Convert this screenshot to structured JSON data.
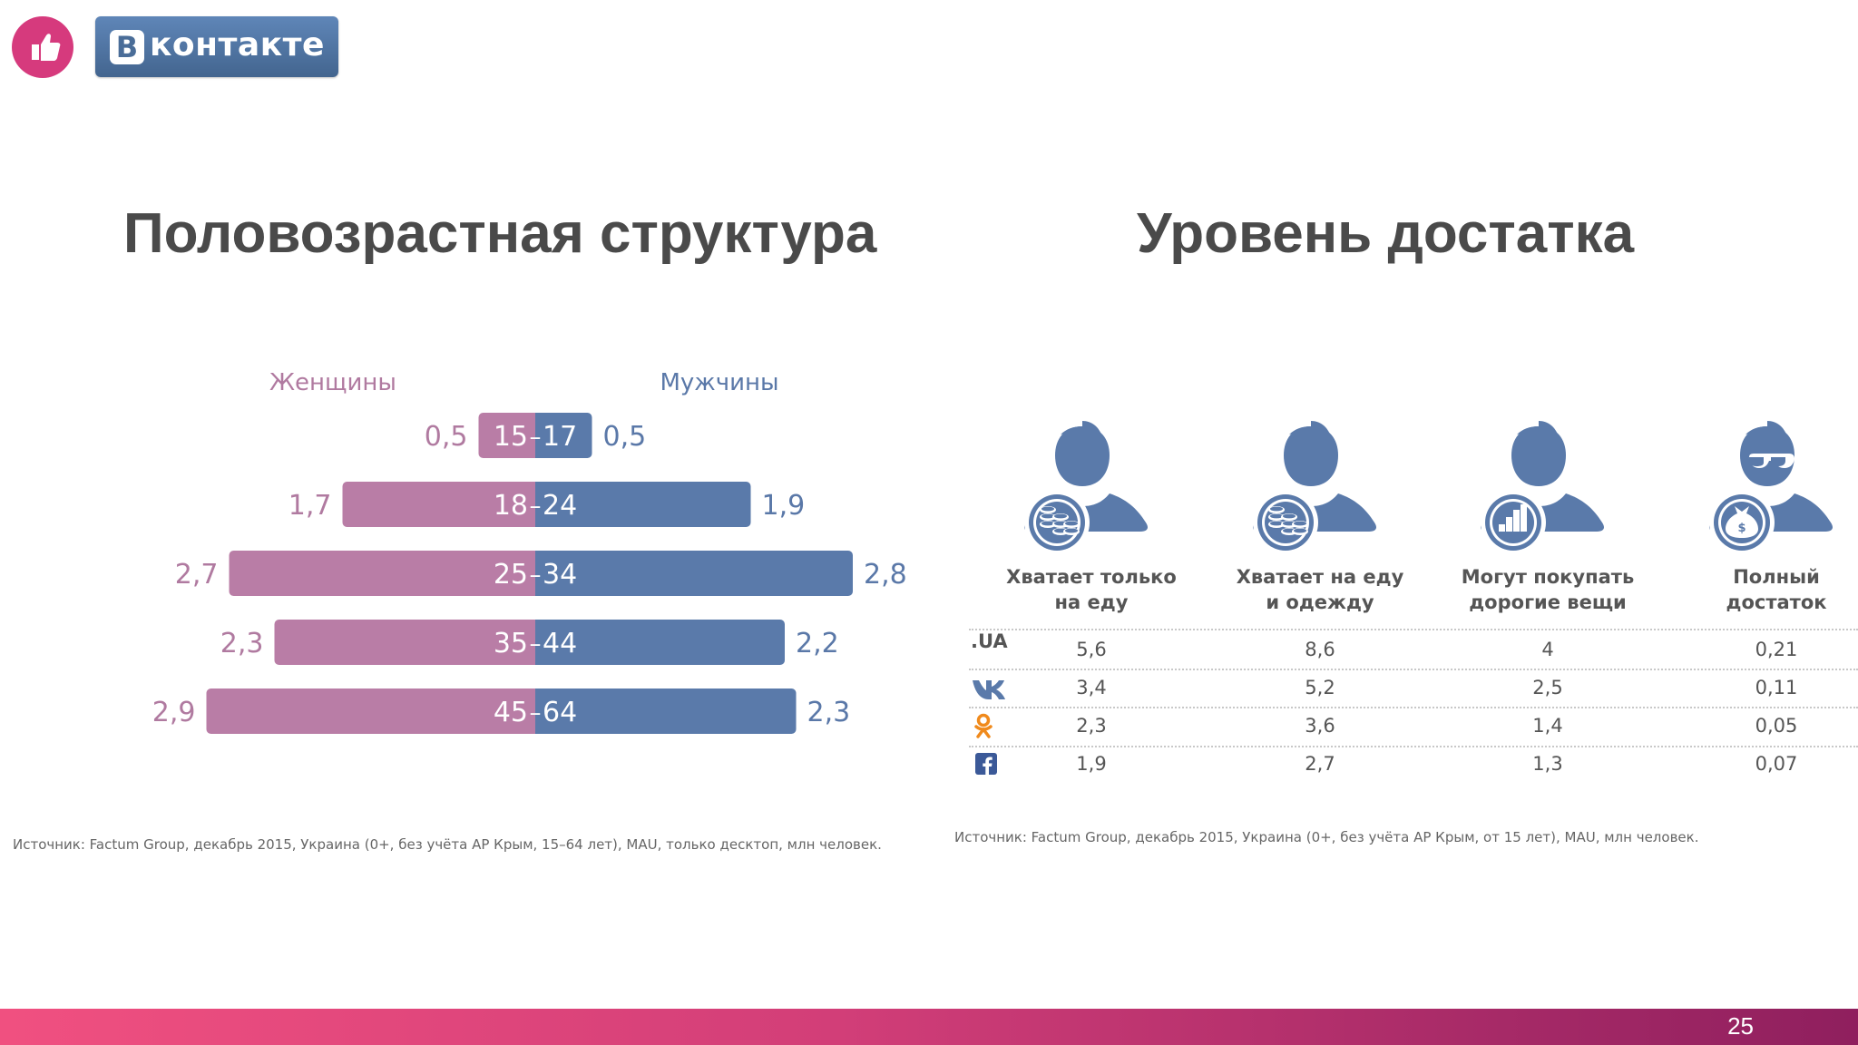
{
  "header": {
    "vk_logo_letter": "В",
    "vk_logo_text": "контакте"
  },
  "left": {
    "title": "Половозрастная структура",
    "source": "Источник: Factum Group, декабрь 2015, Украина (0+, без учёта АР Крым, 15–64 лет), MAU, только десктоп, млн человек."
  },
  "right": {
    "title": "Уровень достатка",
    "columns": [
      {
        "line1": "Хватает только",
        "line2": "на еду",
        "icon": "person-coins-icon"
      },
      {
        "line1": "Хватает на еду",
        "line2": "и одежду",
        "icon": "person-coins-icon"
      },
      {
        "line1": "Могут покупать",
        "line2": "дорогие вещи",
        "icon": "person-chart-icon"
      },
      {
        "line1": "Полный",
        "line2": "достаток",
        "icon": "person-moneybag-icon"
      }
    ],
    "rows": [
      {
        "label": ".UA",
        "brand": "ua-text",
        "values": [
          "5,6",
          "8,6",
          "4",
          "0,21"
        ]
      },
      {
        "label": "",
        "brand": "vk-icon",
        "values": [
          "3,4",
          "5,2",
          "2,5",
          "0,11"
        ]
      },
      {
        "label": "",
        "brand": "odnoklassniki-icon",
        "values": [
          "2,3",
          "3,6",
          "1,4",
          "0,05"
        ]
      },
      {
        "label": "",
        "brand": "facebook-icon",
        "values": [
          "1,9",
          "2,7",
          "1,3",
          "0,07"
        ]
      }
    ],
    "source": "Источник: Factum Group, декабрь 2015, Украина (0+, без учёта АР Крым, от 15 лет), MAU, млн человек."
  },
  "chart_data": {
    "type": "bar",
    "orientation": "horizontal-pyramid",
    "categories": [
      "15–17",
      "18–24",
      "25–34",
      "35–44",
      "45–64"
    ],
    "series": [
      {
        "name": "Женщины",
        "values": [
          0.5,
          1.7,
          2.7,
          2.3,
          2.9
        ],
        "labels": [
          "0,5",
          "1,7",
          "2,7",
          "2,3",
          "2,9"
        ],
        "color": "#b97da6"
      },
      {
        "name": "Мужчины",
        "values": [
          0.5,
          1.9,
          2.8,
          2.2,
          2.3
        ],
        "labels": [
          "0,5",
          "1,9",
          "2,8",
          "2,2",
          "2,3"
        ],
        "color": "#5a7aaa"
      }
    ],
    "legend_placement": "top"
  },
  "footer": {
    "page_number": "25"
  },
  "colors": {
    "women": "#b97da6",
    "women_text": "#b07aa0",
    "men": "#5a7aaa",
    "men_text": "#5a78a8",
    "icon_blue": "#5a7aaa",
    "footer_start": "#f05080",
    "footer_end": "#8f1f5e"
  }
}
